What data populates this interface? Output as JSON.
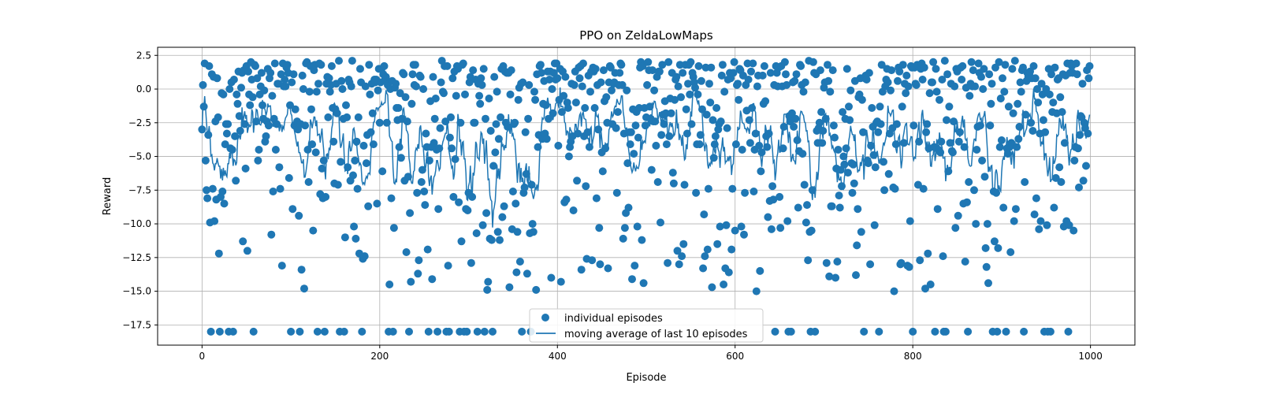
{
  "chart_data": {
    "type": "scatter",
    "title": "PPO on ZeldaLowMaps",
    "xlabel": "Episode",
    "ylabel": "Reward",
    "xlim": [
      -50,
      1050
    ],
    "ylim": [
      -19,
      3.1
    ],
    "xticks": [
      0,
      200,
      400,
      600,
      800,
      1000
    ],
    "yticks": [
      2.5,
      0.0,
      -2.5,
      -5.0,
      -7.5,
      -10.0,
      -12.5,
      -15.0,
      -17.5
    ],
    "ytick_labels": [
      "2.5",
      "0.0",
      "−2.5",
      "−5.0",
      "−7.5",
      "−10.0",
      "−12.5",
      "−15.0",
      "−17.5"
    ],
    "grid": true,
    "legend_position": "lower center",
    "color": "#1f77b4",
    "series": [
      {
        "name": "individual episodes",
        "kind": "scatter",
        "n_episodes": 1000,
        "values_description": "per-episode rewards roughly between -18 and 2",
        "floor_value": -18,
        "floor_episodes": [
          10,
          20,
          30,
          35,
          58,
          100,
          110,
          130,
          138,
          155,
          160,
          180,
          210,
          215,
          233,
          255,
          265,
          275,
          278,
          290,
          295,
          298,
          310,
          318,
          327,
          360,
          370,
          645,
          660,
          663,
          685,
          690,
          745,
          762,
          800,
          825,
          835,
          837,
          862,
          890,
          895,
          905,
          925,
          948,
          952,
          955,
          975
        ]
      },
      {
        "name": "moving average of last 10 episodes",
        "kind": "line",
        "window": 10
      }
    ]
  }
}
